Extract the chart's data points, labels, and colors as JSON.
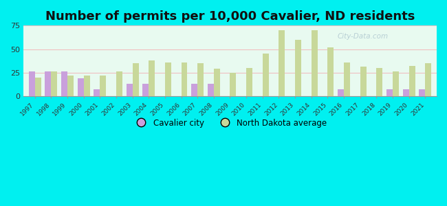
{
  "title": "Number of permits per 10,000 Cavalier, ND residents",
  "years": [
    1997,
    1998,
    1999,
    2000,
    2001,
    2002,
    2003,
    2004,
    2005,
    2006,
    2007,
    2008,
    2009,
    2010,
    2011,
    2012,
    2013,
    2014,
    2015,
    2016,
    2017,
    2018,
    2019,
    2020,
    2021
  ],
  "cavalier": [
    26,
    26,
    26,
    19,
    7,
    0,
    13,
    13,
    0,
    0,
    13,
    13,
    0,
    0,
    0,
    0,
    0,
    0,
    0,
    7,
    0,
    0,
    7,
    7,
    7
  ],
  "nd_avg": [
    20,
    26,
    22,
    22,
    22,
    26,
    35,
    38,
    36,
    36,
    35,
    29,
    25,
    30,
    45,
    70,
    60,
    70,
    52,
    36,
    31,
    30,
    26,
    32,
    35
  ],
  "cavalier_color": "#c9a0dc",
  "nd_avg_color": "#c8d89a",
  "background_color": "#00f0f0",
  "plot_bg_color": "#e8faf0",
  "ylim": [
    0,
    75
  ],
  "yticks": [
    0,
    25,
    50,
    75
  ],
  "title_fontsize": 13,
  "bar_width": 0.38,
  "legend_cavalier": "Cavalier city",
  "legend_nd": "North Dakota average",
  "watermark": "City-Data.com"
}
